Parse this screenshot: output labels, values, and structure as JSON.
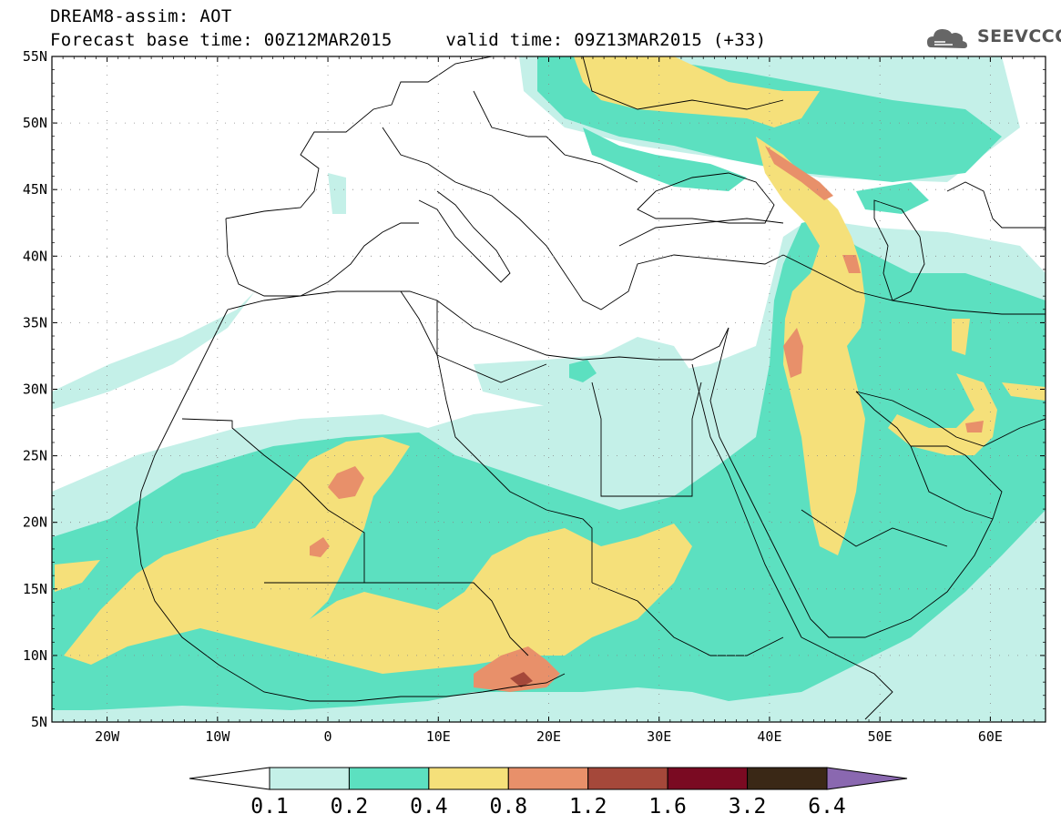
{
  "header": {
    "title": "DREAM8-assim: AOT",
    "subtitle": "Forecast base time: 00Z12MAR2015     valid time: 09Z13MAR2015 (+33)",
    "logo_text": "SEEVCCC"
  },
  "map": {
    "lat_labels": [
      "55N",
      "50N",
      "45N",
      "40N",
      "35N",
      "30N",
      "25N",
      "20N",
      "15N",
      "10N",
      "5N"
    ],
    "lon_labels": [
      "20W",
      "10W",
      "0",
      "10E",
      "20E",
      "30E",
      "40E",
      "50E",
      "60E"
    ],
    "extent": {
      "lon_min": -25,
      "lon_max": 65,
      "lat_min": 5,
      "lat_max": 55
    }
  },
  "colorbar": {
    "labels": [
      "0.1",
      "0.2",
      "0.4",
      "0.8",
      "1.2",
      "1.6",
      "3.2",
      "6.4"
    ],
    "colors": [
      "#ffffff",
      "#c4f0e8",
      "#5ce0c0",
      "#f5e07a",
      "#e8906a",
      "#a5483a",
      "#7a0a22",
      "#3a2816",
      "#8a68b0"
    ]
  },
  "field_colors": {
    "aot_0_1": "#c4f0e8",
    "aot_0_2": "#5ce0c0",
    "aot_0_4": "#f5e07a",
    "aot_0_8": "#e8906a",
    "aot_1_2": "#a5483a"
  }
}
